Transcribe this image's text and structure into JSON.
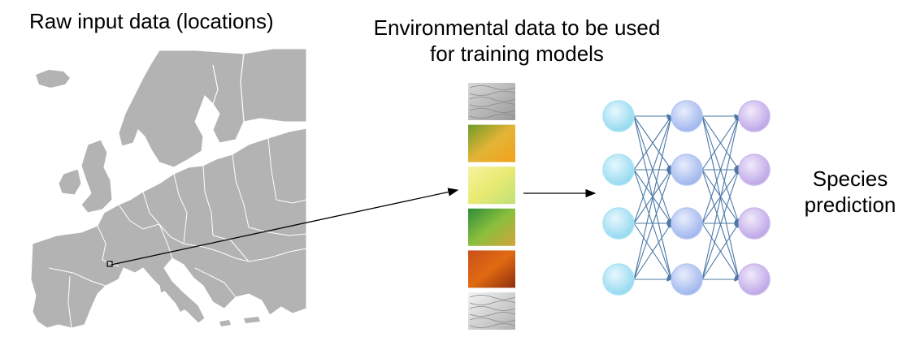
{
  "labels": {
    "raw_input": "Raw input data (locations)",
    "env_line1": "Environmental data to be used",
    "env_line2": "for training models",
    "species_line1": "Species",
    "species_line2": "prediction"
  },
  "env_layers": [
    {
      "name": "terrain-relief-layer",
      "colors": [
        "#d8d8d8",
        "#9a9a9a"
      ]
    },
    {
      "name": "temperature-layer",
      "colors": [
        "#6f9a2a",
        "#e3b436",
        "#f2a11c"
      ]
    },
    {
      "name": "precipitation-layer",
      "colors": [
        "#f6f3a0",
        "#e8ea72",
        "#bfe07a"
      ]
    },
    {
      "name": "vegetation-layer",
      "colors": [
        "#2f8c3a",
        "#8bbf3d",
        "#d1a43a"
      ]
    },
    {
      "name": "soil-layer",
      "colors": [
        "#c9501a",
        "#e06a12",
        "#8f2d0d"
      ]
    },
    {
      "name": "elevation-layer",
      "colors": [
        "#f4f4f4",
        "#b0b0b0"
      ]
    }
  ],
  "network": {
    "layers": [
      4,
      4,
      4
    ],
    "colors": [
      "#a8e4f4",
      "#b4c6f2",
      "#cbb8ec"
    ],
    "edge_color": "#4a78a6"
  },
  "colors": {
    "map_fill": "#b3b3b3",
    "map_border": "#ffffff",
    "arrow": "#000000"
  }
}
